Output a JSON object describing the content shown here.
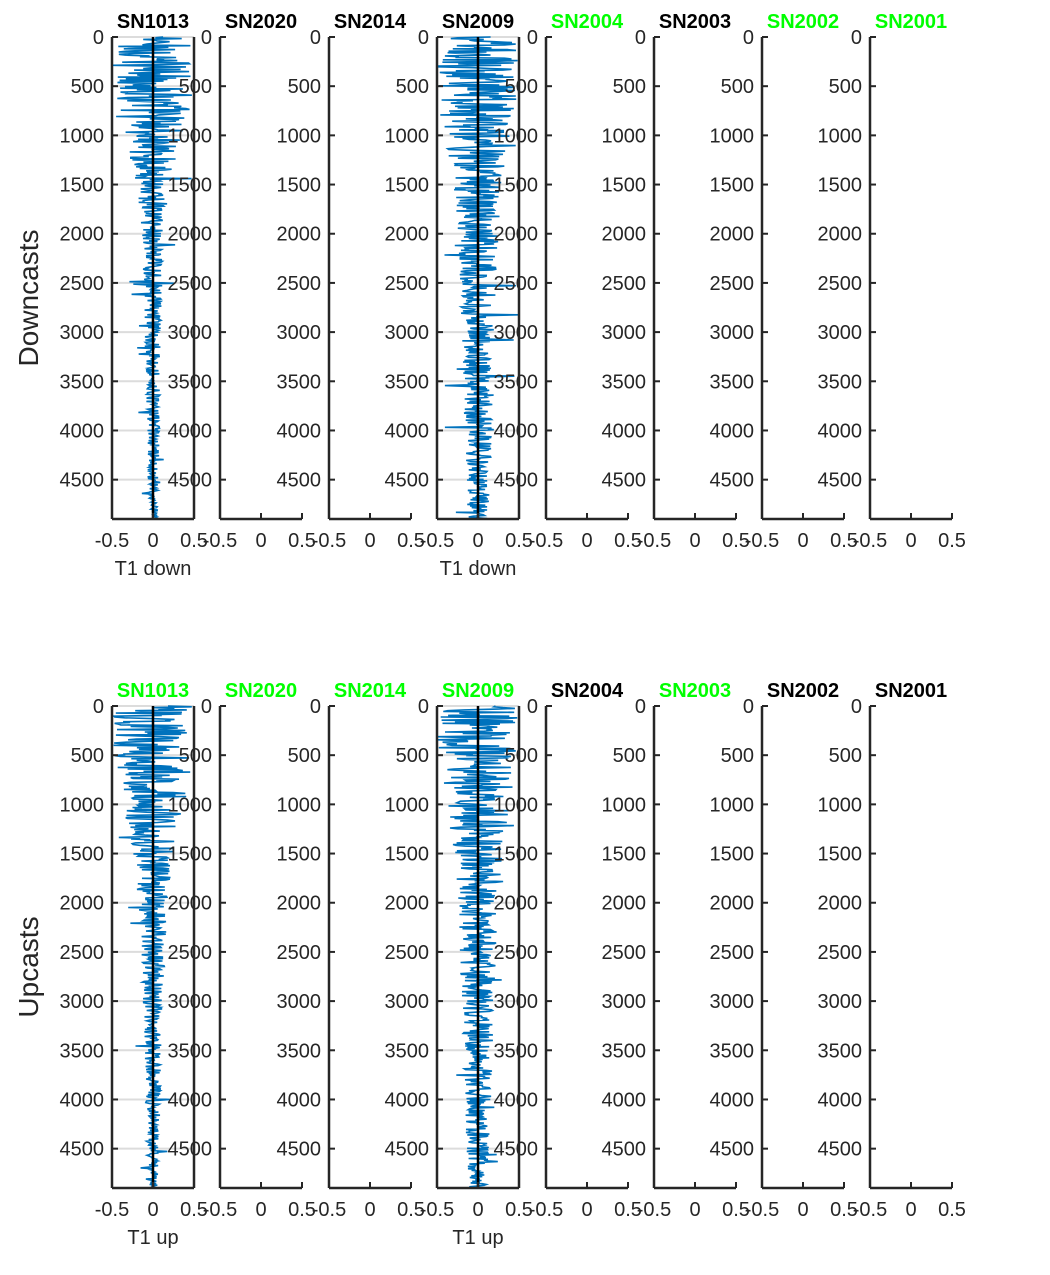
{
  "colors": {
    "title_ok": "#00ff00",
    "title_default": "#000000",
    "trace": "#0072bd",
    "axis": "#262626",
    "grid": "#dcdcdc"
  },
  "rows": [
    {
      "label": "Downcasts",
      "panel_titles": [
        "SN1013",
        "SN2020",
        "SN2014",
        "SN2009",
        "SN2004",
        "SN2003",
        "SN2002",
        "SN2001"
      ],
      "panel_title_colors": [
        "#000000",
        "#000000",
        "#000000",
        "#000000",
        "#00ff00",
        "#000000",
        "#00ff00",
        "#00ff00"
      ],
      "xlabels": [
        "T1 down",
        "",
        "",
        "T1 down",
        "",
        "",
        "",
        ""
      ]
    },
    {
      "label": "Upcasts",
      "panel_titles": [
        "SN1013",
        "SN2020",
        "SN2014",
        "SN2009",
        "SN2004",
        "SN2003",
        "SN2002",
        "SN2001"
      ],
      "panel_title_colors": [
        "#00ff00",
        "#00ff00",
        "#00ff00",
        "#00ff00",
        "#000000",
        "#00ff00",
        "#000000",
        "#000000"
      ],
      "xlabels": [
        "T1 up",
        "",
        "",
        "T1 up",
        "",
        "",
        "",
        ""
      ]
    }
  ],
  "chart_data": {
    "type": "line",
    "layout": "2 rows x 8 panels of vertical profiles (y axis reversed, depth increasing downward)",
    "x_ticks": [
      "-0.5",
      "0",
      "0.5"
    ],
    "xlim": [
      -0.5,
      0.5
    ],
    "y_ticks": [
      "0",
      "500",
      "1000",
      "1500",
      "2000",
      "2500",
      "3000",
      "3500",
      "4000",
      "4500"
    ],
    "ylim": [
      0,
      4900
    ],
    "y_reversed": true,
    "grid": "horizontal gridlines at y ticks in panels with data",
    "vertical_reference_line_at_x": 0,
    "series": [
      {
        "row": "Downcasts",
        "panel": "SN1013",
        "depth": [
          0,
          250,
          500,
          750,
          1000,
          1500,
          2000,
          2500,
          3000,
          3500,
          4000,
          4500,
          4900
        ],
        "spread": [
          0.5,
          0.5,
          0.5,
          0.5,
          0.35,
          0.2,
          0.15,
          0.12,
          0.1,
          0.09,
          0.08,
          0.07,
          0.05
        ]
      },
      {
        "row": "Downcasts",
        "panel": "SN2009",
        "depth": [
          0,
          250,
          500,
          750,
          1000,
          1500,
          2000,
          2500,
          3000,
          3500,
          4000,
          4500,
          4900
        ],
        "spread": [
          0.5,
          0.5,
          0.5,
          0.5,
          0.4,
          0.3,
          0.25,
          0.22,
          0.2,
          0.18,
          0.17,
          0.15,
          0.12
        ]
      },
      {
        "row": "Upcasts",
        "panel": "SN1013",
        "depth": [
          0,
          250,
          500,
          750,
          1000,
          1500,
          2000,
          2500,
          3000,
          3500,
          4000,
          4500,
          4900
        ],
        "spread": [
          0.5,
          0.5,
          0.5,
          0.45,
          0.4,
          0.25,
          0.18,
          0.15,
          0.12,
          0.1,
          0.09,
          0.08,
          0.05
        ]
      },
      {
        "row": "Upcasts",
        "panel": "SN2009",
        "depth": [
          0,
          250,
          500,
          750,
          1000,
          1500,
          2000,
          2500,
          3000,
          3500,
          4000,
          4500,
          4900
        ],
        "spread": [
          0.5,
          0.5,
          0.5,
          0.45,
          0.4,
          0.3,
          0.25,
          0.22,
          0.2,
          0.18,
          0.16,
          0.14,
          0.12
        ]
      }
    ]
  }
}
